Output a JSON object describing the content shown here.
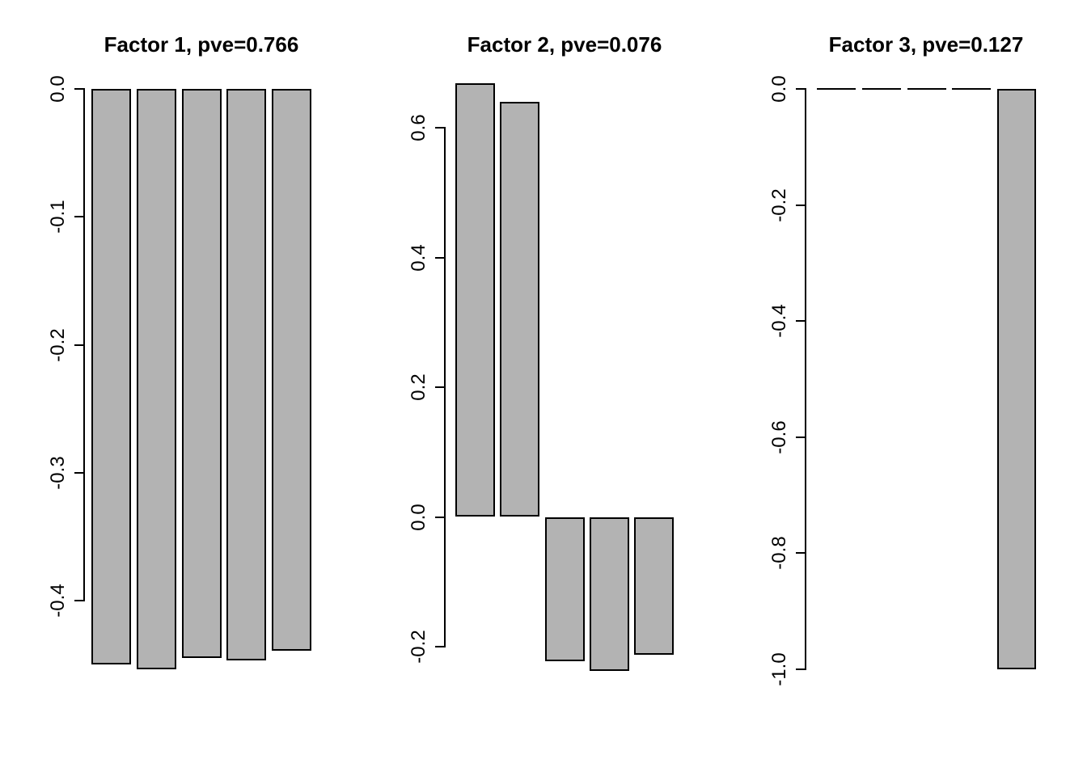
{
  "figure": {
    "background": "#ffffff",
    "description": "Three-panel barplot of factor loadings"
  },
  "style": {
    "bar_fill": "#b3b3b3",
    "bar_border": "#000000",
    "axis_color": "#000000",
    "text_color": "#000000"
  },
  "chart_data": [
    {
      "type": "bar",
      "title": "Factor 1, pve=0.766",
      "factor": "Factor 1",
      "pve": 0.766,
      "values": [
        -0.45,
        -0.454,
        -0.445,
        -0.447,
        -0.439
      ],
      "yticks": [
        0.0,
        -0.1,
        -0.2,
        -0.3,
        -0.4
      ],
      "ytick_labels": [
        "0.0",
        "-0.1",
        "-0.2",
        "-0.3",
        "-0.4"
      ],
      "ylim": [
        -0.46,
        0.0
      ],
      "grid": false,
      "legend": false
    },
    {
      "type": "bar",
      "title": "Factor 2, pve=0.076",
      "factor": "Factor 2",
      "pve": 0.076,
      "values": [
        0.668,
        0.64,
        -0.223,
        -0.238,
        -0.213
      ],
      "yticks": [
        0.6,
        0.4,
        0.2,
        0.0,
        -0.2
      ],
      "ytick_labels": [
        "0.6",
        "0.4",
        "0.2",
        "0.0",
        "-0.2"
      ],
      "ylim": [
        -0.24,
        0.67
      ],
      "grid": false,
      "legend": false
    },
    {
      "type": "bar",
      "title": "Factor 3, pve=0.127",
      "factor": "Factor 3",
      "pve": 0.127,
      "values": [
        0.0,
        0.0,
        0.0,
        0.0,
        -1.0
      ],
      "yticks": [
        0.0,
        -0.2,
        -0.4,
        -0.6,
        -0.8,
        -1.0
      ],
      "ytick_labels": [
        "0.0",
        "-0.2",
        "-0.4",
        "-0.6",
        "-0.8",
        "-1.0"
      ],
      "ylim": [
        -1.0,
        0.0
      ],
      "grid": false,
      "legend": false
    }
  ]
}
